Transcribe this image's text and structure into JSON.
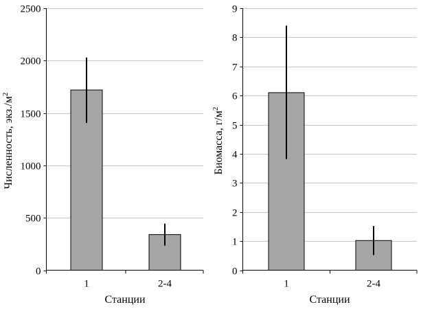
{
  "chart_data": [
    {
      "type": "bar",
      "categories": [
        "1",
        "2-4"
      ],
      "values": [
        1720,
        340
      ],
      "errors_upper": [
        2030,
        445
      ],
      "errors_lower": [
        1405,
        235
      ],
      "ylim": [
        0,
        2500
      ],
      "yticks": [
        0,
        500,
        1000,
        1500,
        2000,
        2500
      ],
      "ytick_labels": [
        "0",
        "500",
        "1000",
        "1500",
        "2000",
        "2500"
      ],
      "grid": true,
      "title": "",
      "xlabel": "Станции",
      "ylabel": "Численность, экз./м",
      "ylabel_sup": "2"
    },
    {
      "type": "bar",
      "categories": [
        "1",
        "2-4"
      ],
      "values": [
        6.1,
        1.02
      ],
      "errors_upper": [
        8.4,
        1.52
      ],
      "errors_lower": [
        3.82,
        0.52
      ],
      "ylim": [
        0,
        9
      ],
      "yticks": [
        0,
        1,
        2,
        3,
        4,
        5,
        6,
        7,
        8,
        9
      ],
      "ytick_labels": [
        "0",
        "1",
        "2",
        "3",
        "4",
        "5",
        "6",
        "7",
        "8",
        "9"
      ],
      "grid": true,
      "title": "",
      "xlabel": "Станции",
      "ylabel": "Биомасса, г/м",
      "ylabel_sup": "2"
    }
  ]
}
